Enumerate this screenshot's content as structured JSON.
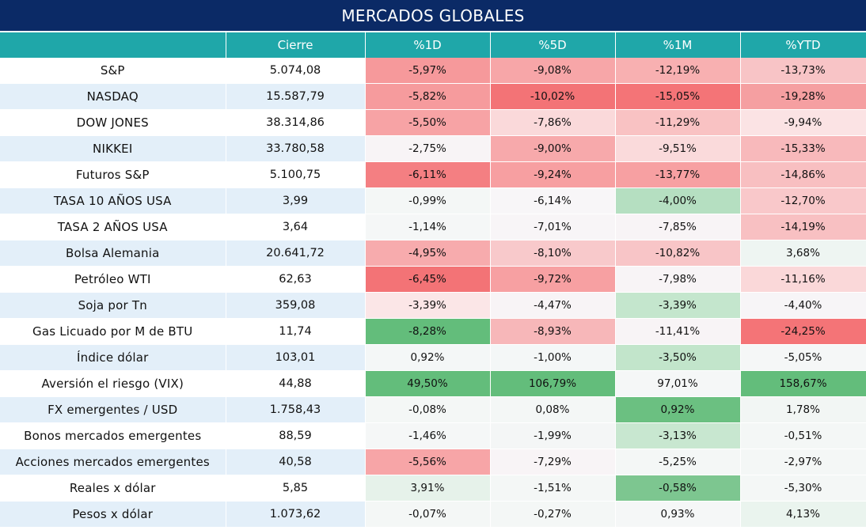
{
  "title": "MERCADOS GLOBALES",
  "headers": [
    "",
    "Cierre",
    "%1D",
    "%5D",
    "%1M",
    "%YTD"
  ],
  "rows": [
    {
      "name": "S&P",
      "close": "5.074,08",
      "d1": "-5,97%",
      "d5": "-9,08%",
      "m1": "-12,19%",
      "ytd": "-13,73%",
      "colors": [
        "#f6999b",
        "#f7a6a8",
        "#f8b0b1",
        "#f8c4c6"
      ]
    },
    {
      "name": "NASDAQ",
      "close": "15.587,79",
      "d1": "-5,82%",
      "d5": "-10,02%",
      "m1": "-15,05%",
      "ytd": "-19,28%",
      "colors": [
        "#f69b9d",
        "#f37376",
        "#f47477",
        "#f59fa1"
      ]
    },
    {
      "name": "DOW JONES",
      "close": "38.314,86",
      "d1": "-5,50%",
      "d5": "-7,86%",
      "m1": "-11,29%",
      "ytd": "-9,94%",
      "colors": [
        "#f7a3a5",
        "#fad9da",
        "#f9c2c3",
        "#fbe3e4"
      ]
    },
    {
      "name": "NIKKEI",
      "close": "33.780,58",
      "d1": "-2,75%",
      "d5": "-9,00%",
      "m1": "-9,51%",
      "ytd": "-15,33%",
      "colors": [
        "#f8f4f6",
        "#f7a9ab",
        "#fadadb",
        "#f8b9bb"
      ]
    },
    {
      "name": "Futuros S&P",
      "close": "5.100,75",
      "d1": "-6,11%",
      "d5": "-9,24%",
      "m1": "-13,77%",
      "ytd": "-14,86%",
      "colors": [
        "#f47f82",
        "#f79fa1",
        "#f7a0a2",
        "#f8bfc1"
      ]
    },
    {
      "name": "TASA 10 AÑOS USA",
      "close": "3,99",
      "d1": "-0,99%",
      "d5": "-6,14%",
      "m1": "-4,00%",
      "ytd": "-12,70%",
      "colors": [
        "#f4f7f6",
        "#f8f6f8",
        "#b5dfc1",
        "#f9c8ca"
      ]
    },
    {
      "name": "TASA 2 AÑOS USA",
      "close": "3,64",
      "d1": "-1,14%",
      "d5": "-7,01%",
      "m1": "-7,85%",
      "ytd": "-14,19%",
      "colors": [
        "#f5f7f7",
        "#f8f5f7",
        "#f8f4f6",
        "#f8c0c2"
      ]
    },
    {
      "name": "Bolsa Alemania",
      "close": "20.641,72",
      "d1": "-4,95%",
      "d5": "-8,10%",
      "m1": "-10,82%",
      "ytd": "3,68%",
      "colors": [
        "#f7abad",
        "#f8c9cb",
        "#f8c5c7",
        "#eef5f2"
      ]
    },
    {
      "name": "Petróleo WTI",
      "close": "62,63",
      "d1": "-6,45%",
      "d5": "-9,72%",
      "m1": "-7,98%",
      "ytd": "-11,16%",
      "colors": [
        "#f37376",
        "#f7a0a2",
        "#f8f4f6",
        "#fad8d9"
      ]
    },
    {
      "name": "Soja por Tn",
      "close": "359,08",
      "d1": "-3,39%",
      "d5": "-4,47%",
      "m1": "-3,39%",
      "ytd": "-4,40%",
      "colors": [
        "#fbe6e7",
        "#f8f4f6",
        "#c4e6cd",
        "#f7f5f7"
      ]
    },
    {
      "name": "Gas Licuado por M de BTU",
      "close": "11,74",
      "d1": "-8,28%",
      "d5": "-8,93%",
      "m1": "-11,41%",
      "ytd": "-24,25%",
      "colors": [
        "#63bd7b",
        "#f7b7b9",
        "#f8f4f6",
        "#f47477"
      ]
    },
    {
      "name": "Índice dólar",
      "close": "103,01",
      "d1": "0,92%",
      "d5": "-1,00%",
      "m1": "-3,50%",
      "ytd": "-5,05%",
      "colors": [
        "#f4f7f7",
        "#f4f7f7",
        "#c2e5cb",
        "#f5f7f7"
      ]
    },
    {
      "name": "Aversión el riesgo (VIX)",
      "close": "44,88",
      "d1": "49,50%",
      "d5": "106,79%",
      "m1": "97,01%",
      "ytd": "158,67%",
      "colors": [
        "#63bd7b",
        "#63bd7b",
        "#f5f7f7",
        "#63bd7b"
      ]
    },
    {
      "name": "FX emergentes / USD",
      "close": "1.758,43",
      "d1": "-0,08%",
      "d5": "0,08%",
      "m1": "0,92%",
      "ytd": "1,78%",
      "colors": [
        "#f4f7f6",
        "#f4f7f6",
        "#6bc081",
        "#f2f6f4"
      ]
    },
    {
      "name": "Bonos mercados emergentes",
      "close": "88,59",
      "d1": "-1,46%",
      "d5": "-1,99%",
      "m1": "-3,13%",
      "ytd": "-0,51%",
      "colors": [
        "#f5f7f7",
        "#f4f6f6",
        "#c8e7d0",
        "#f4f7f6"
      ]
    },
    {
      "name": "Acciones mercados emergentes",
      "close": "40,58",
      "d1": "-5,56%",
      "d5": "-7,29%",
      "m1": "-5,25%",
      "ytd": "-2,97%",
      "colors": [
        "#f7a5a7",
        "#f8f4f6",
        "#f4f7f6",
        "#f4f7f6"
      ]
    },
    {
      "name": "Reales x dólar",
      "close": "5,85",
      "d1": "3,91%",
      "d5": "-1,51%",
      "m1": "-0,58%",
      "ytd": "-5,30%",
      "colors": [
        "#e6f2ea",
        "#f4f7f6",
        "#7dc690",
        "#f4f7f6"
      ]
    },
    {
      "name": "Pesos x dólar",
      "close": "1.073,62",
      "d1": "-0,07%",
      "d5": "-0,27%",
      "m1": "0,93%",
      "ytd": "4,13%",
      "colors": [
        "#f4f7f6",
        "#f4f7f6",
        "#f5f7f7",
        "#eaf4ee"
      ]
    }
  ]
}
